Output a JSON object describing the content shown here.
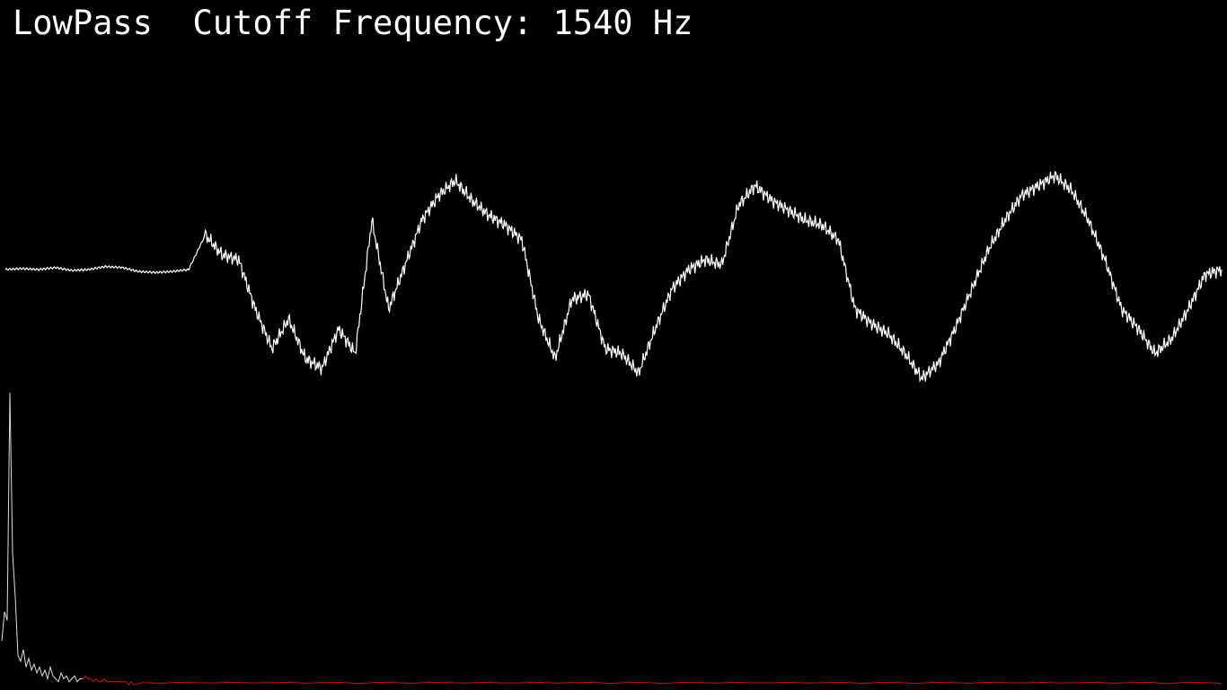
{
  "header": {
    "filter_type": "LowPass",
    "cutoff_label": "Cutoff Frequency:",
    "cutoff_value": "1540 Hz"
  },
  "colors": {
    "background": "#000000",
    "text": "#ffffff",
    "waveform": "#ffffff",
    "spectrum_pass": "#dcdcdc",
    "spectrum_stop": "#c81414"
  },
  "chart_data": [
    {
      "type": "line",
      "series": [
        {
          "values": [
            0.0,
            0.01,
            0.0,
            0.02,
            -0.01,
            0.0,
            0.03,
            0.02,
            -0.02,
            -0.03,
            -0.02,
            0.0,
            0.35,
            0.15,
            0.1,
            -0.4,
            -0.8,
            -0.5,
            -0.9,
            -1.0,
            -0.6,
            -0.85,
            0.5,
            -0.4,
            0.05,
            0.5,
            0.75,
            0.9,
            0.7,
            0.55,
            0.45,
            0.3,
            -0.5,
            -0.9,
            -0.3,
            -0.25,
            -0.8,
            -0.85,
            -1.05,
            -0.6,
            -0.2,
            0.0,
            0.1,
            0.05,
            0.65,
            0.85,
            0.7,
            0.6,
            0.5,
            0.45,
            0.3,
            -0.4,
            -0.55,
            -0.65,
            -0.85,
            -1.1,
            -0.95,
            -0.6,
            -0.2,
            0.2,
            0.5,
            0.75,
            0.85,
            0.95,
            0.8,
            0.5,
            0.1,
            -0.4,
            -0.6,
            -0.85,
            -0.7,
            -0.4,
            -0.05,
            0.0
          ]
        }
      ]
    },
    {
      "type": "area",
      "pass_bins": 30,
      "series": [
        {
          "values": [
            0.15,
            0.25,
            0.22,
            1.0,
            0.45,
            0.3,
            0.1,
            0.08,
            0.12,
            0.06,
            0.09,
            0.05,
            0.07,
            0.04,
            0.06,
            0.03,
            0.05,
            0.02,
            0.06,
            0.03,
            0.02,
            0.01,
            0.04,
            0.02,
            0.03,
            0.01,
            0.02,
            0.03,
            0.01,
            0.02,
            0.02,
            0.03,
            0.02,
            0.02,
            0.01,
            0.02,
            0.01,
            0.01,
            0.02,
            0.01,
            0.01,
            0.01,
            0.01,
            0.01,
            0.01,
            0.01,
            0.01,
            0.0,
            0.01,
            0.0
          ]
        }
      ]
    }
  ]
}
